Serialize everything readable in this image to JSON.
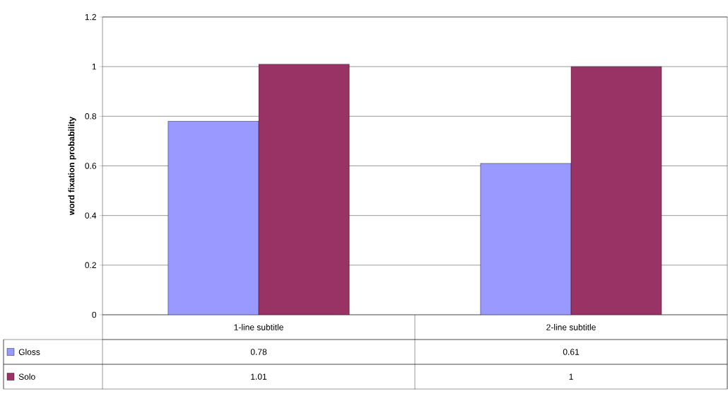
{
  "chart_data": {
    "type": "bar",
    "ylabel": "word fixation probability",
    "categories": [
      "1-line subtitle",
      "2-line subtitle"
    ],
    "series": [
      {
        "name": "Gloss",
        "color": "#9999ff",
        "values": [
          0.78,
          0.61
        ],
        "value_labels": [
          "0.78",
          "0.61"
        ]
      },
      {
        "name": "Solo",
        "color": "#993366",
        "values": [
          1.01,
          1
        ],
        "value_labels": [
          "1.01",
          "1"
        ]
      }
    ],
    "ylim": [
      0,
      1.2
    ],
    "yticks": [
      0,
      0.2,
      0.4,
      0.6,
      0.8,
      1,
      1.2
    ],
    "grid": "y",
    "legend": "bottom"
  }
}
